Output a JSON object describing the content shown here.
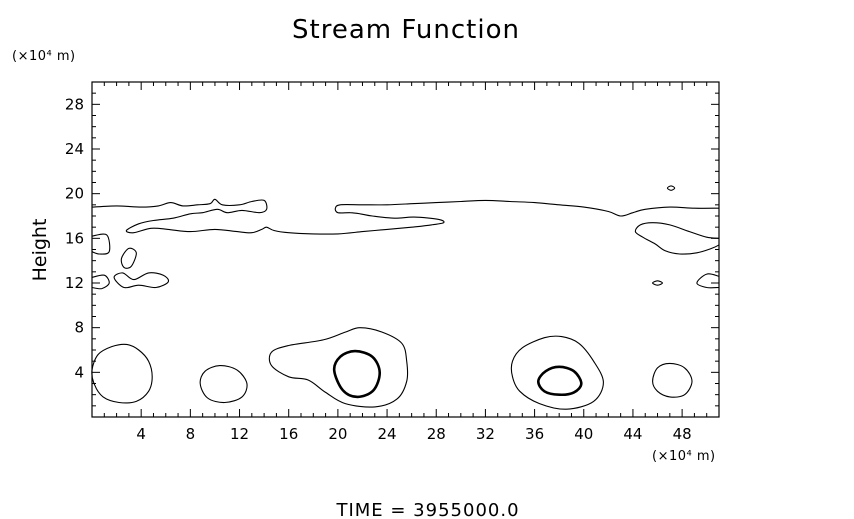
{
  "chart_data": {
    "type": "contour",
    "title": "Stream Function",
    "ylabel": "Height",
    "xunit": "(×10⁴ m)",
    "yunit": "(×10⁴ m)",
    "footer": "TIME  =  3955000.0",
    "xlim": [
      0,
      51
    ],
    "ylim": [
      0,
      30
    ],
    "xticks": [
      4,
      8,
      12,
      16,
      20,
      24,
      28,
      32,
      36,
      40,
      44,
      48
    ],
    "yticks": [
      4,
      8,
      12,
      16,
      20,
      24,
      28
    ],
    "grid": false,
    "contours": [
      {
        "name": "c1",
        "weight": "thin",
        "closed": true,
        "points": [
          [
            0,
            4.2
          ],
          [
            0.5,
            5.6
          ],
          [
            1.6,
            6.3
          ],
          [
            2.8,
            6.5
          ],
          [
            3.8,
            6.0
          ],
          [
            4.6,
            5.0
          ],
          [
            4.9,
            3.6
          ],
          [
            4.6,
            2.3
          ],
          [
            3.6,
            1.4
          ],
          [
            2.2,
            1.3
          ],
          [
            0.9,
            1.8
          ],
          [
            0.2,
            2.9
          ]
        ]
      },
      {
        "name": "c2",
        "weight": "thin",
        "closed": true,
        "points": [
          [
            8.8,
            3.0
          ],
          [
            9.2,
            4.1
          ],
          [
            10.4,
            4.6
          ],
          [
            11.8,
            4.2
          ],
          [
            12.6,
            3.0
          ],
          [
            12.2,
            1.8
          ],
          [
            10.8,
            1.3
          ],
          [
            9.4,
            1.7
          ]
        ]
      },
      {
        "name": "c3",
        "weight": "thin",
        "closed": true,
        "points": [
          [
            14.6,
            5.8
          ],
          [
            16.0,
            6.4
          ],
          [
            18.8,
            6.9
          ],
          [
            20.6,
            7.6
          ],
          [
            21.8,
            8.0
          ],
          [
            23.6,
            7.6
          ],
          [
            25.2,
            6.6
          ],
          [
            25.6,
            5.0
          ],
          [
            25.6,
            3.2
          ],
          [
            24.8,
            1.6
          ],
          [
            23.0,
            0.9
          ],
          [
            20.6,
            1.2
          ],
          [
            19.0,
            2.2
          ],
          [
            17.6,
            3.3
          ],
          [
            16.0,
            3.6
          ],
          [
            14.6,
            4.6
          ]
        ]
      },
      {
        "name": "c4",
        "weight": "thick",
        "closed": true,
        "points": [
          [
            19.7,
            4.2
          ],
          [
            20.2,
            5.4
          ],
          [
            21.4,
            5.9
          ],
          [
            22.8,
            5.4
          ],
          [
            23.4,
            4.0
          ],
          [
            22.9,
            2.4
          ],
          [
            21.6,
            1.8
          ],
          [
            20.4,
            2.4
          ]
        ]
      },
      {
        "name": "c5",
        "weight": "thin",
        "closed": true,
        "points": [
          [
            34.2,
            5.0
          ],
          [
            35.0,
            6.2
          ],
          [
            36.8,
            7.1
          ],
          [
            38.2,
            7.2
          ],
          [
            39.6,
            6.6
          ],
          [
            40.8,
            5.0
          ],
          [
            41.6,
            3.1
          ],
          [
            40.8,
            1.4
          ],
          [
            38.6,
            0.7
          ],
          [
            36.4,
            1.2
          ],
          [
            34.8,
            2.3
          ],
          [
            34.2,
            3.6
          ]
        ]
      },
      {
        "name": "c6",
        "weight": "thick",
        "closed": true,
        "points": [
          [
            36.3,
            3.2
          ],
          [
            36.9,
            4.1
          ],
          [
            38.0,
            4.5
          ],
          [
            39.2,
            4.1
          ],
          [
            39.8,
            3.0
          ],
          [
            39.2,
            2.2
          ],
          [
            38.0,
            2.0
          ],
          [
            36.8,
            2.3
          ]
        ]
      },
      {
        "name": "c7",
        "weight": "thin",
        "closed": true,
        "points": [
          [
            45.6,
            3.2
          ],
          [
            46.0,
            4.4
          ],
          [
            47.0,
            4.8
          ],
          [
            48.2,
            4.4
          ],
          [
            48.8,
            3.2
          ],
          [
            48.2,
            2.0
          ],
          [
            47.0,
            1.8
          ],
          [
            46.0,
            2.3
          ]
        ]
      },
      {
        "name": "c8",
        "weight": "thin",
        "closed": true,
        "points": [
          [
            2.4,
            14.2
          ],
          [
            3.0,
            15.1
          ],
          [
            3.6,
            14.7
          ],
          [
            3.2,
            13.5
          ],
          [
            2.6,
            13.4
          ]
        ]
      },
      {
        "name": "c9",
        "weight": "thin",
        "closed": true,
        "points": [
          [
            1.8,
            12.5
          ],
          [
            2.5,
            12.9
          ],
          [
            3.4,
            12.3
          ],
          [
            4.6,
            12.9
          ],
          [
            5.8,
            12.7
          ],
          [
            6.2,
            12.1
          ],
          [
            5.2,
            11.6
          ],
          [
            3.8,
            11.8
          ],
          [
            2.6,
            11.6
          ]
        ]
      },
      {
        "name": "c10",
        "weight": "thin",
        "closed": false,
        "points": [
          [
            0,
            12.5
          ],
          [
            1.0,
            12.7
          ],
          [
            1.4,
            12.0
          ],
          [
            0.8,
            11.5
          ],
          [
            0,
            11.6
          ]
        ]
      },
      {
        "name": "c11",
        "weight": "thin",
        "closed": false,
        "points": [
          [
            0,
            16.2
          ],
          [
            1.2,
            16.3
          ],
          [
            1.4,
            14.8
          ],
          [
            0.6,
            14.6
          ],
          [
            0,
            14.8
          ]
        ]
      },
      {
        "name": "c12",
        "weight": "thin",
        "closed": false,
        "points": [
          [
            51,
            12.6
          ],
          [
            50.0,
            12.8
          ],
          [
            49.2,
            12.0
          ],
          [
            50.0,
            11.6
          ],
          [
            51,
            11.6
          ]
        ]
      },
      {
        "name": "c13",
        "weight": "thin",
        "closed": true,
        "points": [
          [
            45.6,
            12.0
          ],
          [
            46.0,
            12.2
          ],
          [
            46.4,
            12.0
          ],
          [
            46.0,
            11.8
          ]
        ]
      },
      {
        "name": "c14",
        "weight": "thin",
        "closed": false,
        "points": [
          [
            0,
            18.8
          ],
          [
            2,
            18.9
          ],
          [
            4,
            18.8
          ],
          [
            5.4,
            18.9
          ],
          [
            6.4,
            19.2
          ],
          [
            7.4,
            18.9
          ],
          [
            8.6,
            19.0
          ],
          [
            9.6,
            19.1
          ],
          [
            10.0,
            19.5
          ],
          [
            10.6,
            19.0
          ],
          [
            12.0,
            19.0
          ],
          [
            13.0,
            19.3
          ],
          [
            14.0,
            19.4
          ],
          [
            14.2,
            18.6
          ],
          [
            13.6,
            18.3
          ],
          [
            12.2,
            18.5
          ],
          [
            11.0,
            18.3
          ],
          [
            10.2,
            18.6
          ],
          [
            9.0,
            18.3
          ],
          [
            8.0,
            18.2
          ],
          [
            6.6,
            17.8
          ],
          [
            5.0,
            17.6
          ],
          [
            3.8,
            17.3
          ],
          [
            2.8,
            16.7
          ],
          [
            3.4,
            16.5
          ],
          [
            4.8,
            16.9
          ],
          [
            6.2,
            16.8
          ],
          [
            8.0,
            16.6
          ],
          [
            10.0,
            16.8
          ],
          [
            11.8,
            16.6
          ],
          [
            13.0,
            16.5
          ],
          [
            13.8,
            16.8
          ],
          [
            14.2,
            17.0
          ],
          [
            14.8,
            16.7
          ],
          [
            16.0,
            16.5
          ],
          [
            18.0,
            16.4
          ],
          [
            20.0,
            16.4
          ],
          [
            22.0,
            16.6
          ],
          [
            24.0,
            16.8
          ],
          [
            26.0,
            17.0
          ],
          [
            27.6,
            17.2
          ],
          [
            28.6,
            17.4
          ],
          [
            28.2,
            17.7
          ],
          [
            26.2,
            17.9
          ],
          [
            24.6,
            17.8
          ],
          [
            22.8,
            18.0
          ],
          [
            21.8,
            18.2
          ],
          [
            21.0,
            18.3
          ],
          [
            20.0,
            18.3
          ],
          [
            19.8,
            18.7
          ],
          [
            20.2,
            19.0
          ],
          [
            22.0,
            19.0
          ],
          [
            24.0,
            19.0
          ],
          [
            26.0,
            19.1
          ],
          [
            28.0,
            19.2
          ],
          [
            30.0,
            19.3
          ],
          [
            32.0,
            19.4
          ],
          [
            34.0,
            19.3
          ],
          [
            36.0,
            19.2
          ],
          [
            38.0,
            19.0
          ],
          [
            40.0,
            18.8
          ],
          [
            42.0,
            18.4
          ],
          [
            43.0,
            18.0
          ],
          [
            44.0,
            18.3
          ],
          [
            45.0,
            18.6
          ],
          [
            47.0,
            18.8
          ],
          [
            49.0,
            18.7
          ],
          [
            51,
            18.7
          ]
        ]
      },
      {
        "name": "c15",
        "weight": "thin",
        "closed": false,
        "points": [
          [
            51,
            16.0
          ],
          [
            50.0,
            16.1
          ],
          [
            48.6,
            16.6
          ],
          [
            47.0,
            17.2
          ],
          [
            45.6,
            17.4
          ],
          [
            44.6,
            17.2
          ],
          [
            44.2,
            16.6
          ],
          [
            44.8,
            16.1
          ],
          [
            45.8,
            15.5
          ],
          [
            46.6,
            14.9
          ],
          [
            47.8,
            14.6
          ],
          [
            49.2,
            14.7
          ],
          [
            50.4,
            15.1
          ],
          [
            51,
            15.4
          ]
        ]
      },
      {
        "name": "c16",
        "weight": "thin",
        "closed": true,
        "points": [
          [
            46.8,
            20.5
          ],
          [
            47.1,
            20.7
          ],
          [
            47.4,
            20.5
          ],
          [
            47.1,
            20.3
          ]
        ]
      }
    ]
  }
}
